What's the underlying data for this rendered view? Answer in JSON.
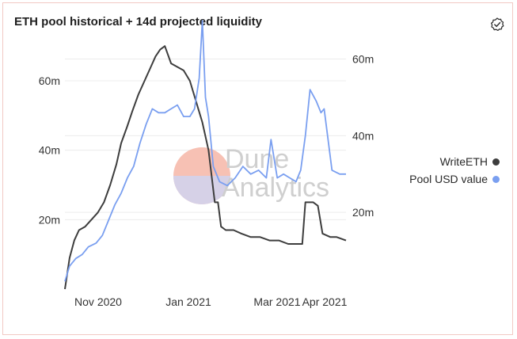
{
  "header": {
    "title": "ETH pool historical + 14d projected liquidity"
  },
  "icons": {
    "action": "check-badge-icon"
  },
  "watermark": {
    "line1": "Dune",
    "line2": "Analytics"
  },
  "colors": {
    "writeeth": "#3d3d3d",
    "pool_usd": "#7a9ff0",
    "grid": "#ececec"
  },
  "chart_data": {
    "type": "line",
    "x_ticks": [
      "Nov 2020",
      "Jan 2021",
      "Mar 2021",
      "Apr 2021"
    ],
    "y_left": {
      "ticks": [
        "20m",
        "40m",
        "60m"
      ],
      "values": [
        20,
        40,
        60
      ],
      "range": [
        0,
        70
      ]
    },
    "y_right": {
      "ticks": [
        "20m",
        "40m",
        "60m"
      ],
      "values": [
        20,
        40,
        60
      ],
      "range": [
        0,
        70
      ]
    },
    "grid": true,
    "legend_position": "right",
    "series": [
      {
        "name": "WriteETH",
        "axis": "left",
        "x": [
          "2020-10-13",
          "2020-10-16",
          "2020-10-19",
          "2020-10-22",
          "2020-10-26",
          "2020-10-30",
          "2020-11-03",
          "2020-11-07",
          "2020-11-11",
          "2020-11-15",
          "2020-11-18",
          "2020-11-22",
          "2020-11-25",
          "2020-11-29",
          "2020-12-03",
          "2020-12-07",
          "2020-12-10",
          "2020-12-13",
          "2020-12-16",
          "2020-12-20",
          "2020-12-24",
          "2020-12-28",
          "2021-01-01",
          "2021-01-05",
          "2021-01-09",
          "2021-01-13",
          "2021-01-17",
          "2021-01-19",
          "2021-01-21",
          "2021-01-24",
          "2021-01-29",
          "2021-02-03",
          "2021-02-09",
          "2021-02-15",
          "2021-02-21",
          "2021-02-27",
          "2021-03-05",
          "2021-03-11",
          "2021-03-14",
          "2021-03-16",
          "2021-03-21",
          "2021-03-24",
          "2021-03-27",
          "2021-04-01",
          "2021-04-05",
          "2021-04-11"
        ],
        "y": [
          0,
          9,
          14,
          17,
          18,
          20,
          22,
          25,
          30,
          36,
          42,
          47,
          51,
          56,
          60,
          64,
          67,
          69,
          70,
          65,
          64,
          63,
          60,
          54,
          48,
          40,
          25,
          25,
          18,
          17,
          17,
          16,
          15,
          15,
          14,
          14,
          13,
          13,
          13,
          25,
          25,
          24,
          16,
          15,
          15,
          14
        ]
      },
      {
        "name": "Pool USD value",
        "axis": "right",
        "x": [
          "2020-10-13",
          "2020-10-16",
          "2020-10-20",
          "2020-10-24",
          "2020-10-28",
          "2020-11-02",
          "2020-11-06",
          "2020-11-10",
          "2020-11-14",
          "2020-11-18",
          "2020-11-22",
          "2020-11-26",
          "2020-11-30",
          "2020-12-04",
          "2020-12-08",
          "2020-12-12",
          "2020-12-16",
          "2020-12-20",
          "2020-12-24",
          "2020-12-28",
          "2021-01-01",
          "2021-01-04",
          "2021-01-07",
          "2021-01-09",
          "2021-01-11",
          "2021-01-13",
          "2021-01-16",
          "2021-01-20",
          "2021-01-25",
          "2021-01-30",
          "2021-02-04",
          "2021-02-09",
          "2021-02-14",
          "2021-02-19",
          "2021-02-22",
          "2021-02-26",
          "2021-03-02",
          "2021-03-06",
          "2021-03-10",
          "2021-03-13",
          "2021-03-16",
          "2021-03-19",
          "2021-03-23",
          "2021-03-26",
          "2021-03-28",
          "2021-04-02",
          "2021-04-07",
          "2021-04-11"
        ],
        "y": [
          2,
          6,
          8,
          9,
          11,
          12,
          14,
          18,
          22,
          25,
          29,
          32,
          38,
          43,
          47,
          46,
          46,
          47,
          48,
          45,
          45,
          47,
          55,
          70,
          50,
          45,
          32,
          28,
          27,
          29,
          32,
          30,
          31,
          29,
          39,
          29,
          30,
          29,
          28,
          31,
          40,
          52,
          49,
          46,
          47,
          31,
          30,
          30
        ]
      }
    ]
  }
}
